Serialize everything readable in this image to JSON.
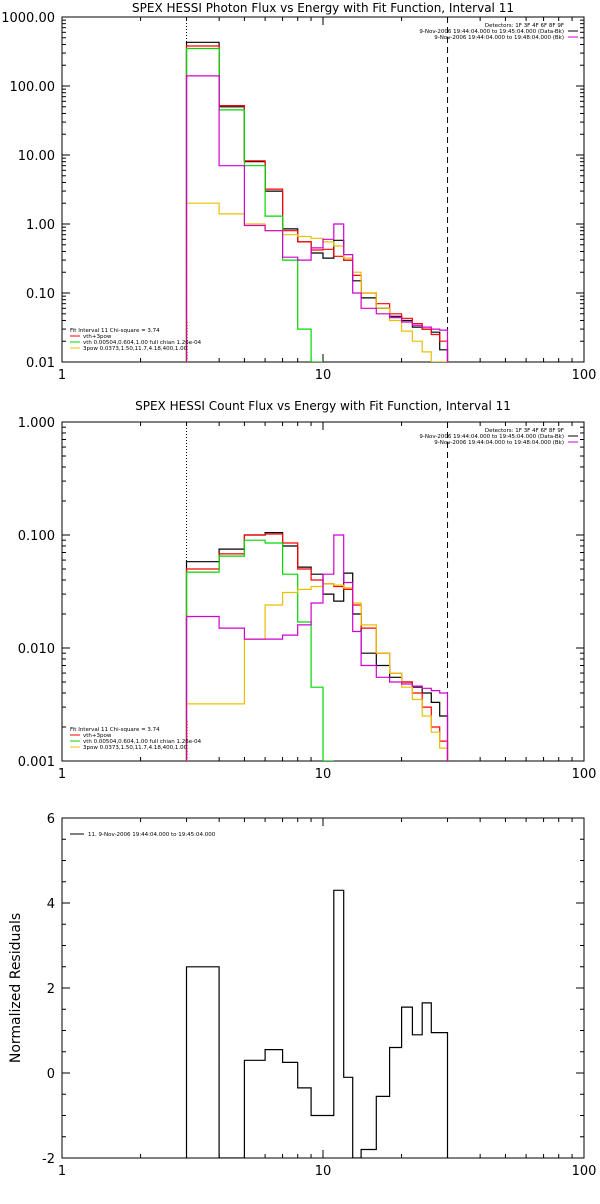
{
  "colors": {
    "black": "#000000",
    "red": "#ff0000",
    "green": "#00d800",
    "magenta": "#d000d0",
    "yellow": "#e8c000",
    "orange_marker": "#ff9000",
    "background": "#ffffff"
  },
  "chart_data": [
    {
      "type": "line",
      "id": "photon",
      "title": "SPEX HESSI Photon Flux vs Energy with Fit Function, Interval 11",
      "xlabel": "",
      "ylabel": "",
      "xscale": "log",
      "yscale": "log",
      "xlim": [
        1,
        100
      ],
      "ylim": [
        0.01,
        1000
      ],
      "x_tick_labels": [
        "1",
        "10",
        "100"
      ],
      "y_tick_labels": [
        "0.01",
        "0.10",
        "1.00",
        "10.00",
        "100.00",
        "1000.00"
      ],
      "grid": false,
      "legend_top": [
        "Detectors: 1F 3F 4F 6F 8F 9F",
        "9-Nov-2006 19:44:04.000 to 19:45:04.000 (Data-Bk)",
        "9-Nov-2006 19:44:04.000 to 19:48:04.000 (Bk)"
      ],
      "legend_bottom": [
        "Fit Interval 11    Chi-square = 3.74",
        "vth+3pow",
        "vth 0.00504,0.604,1.00  full chian 1.26e-04",
        "3pow 0.0373,1.50,11.7,4.18,400,1.00"
      ],
      "vlines": [
        3,
        30
      ],
      "edges": [
        3,
        4,
        5,
        6,
        7,
        8,
        9,
        10,
        11,
        12,
        13,
        14,
        16,
        18,
        20,
        22,
        24,
        26,
        28,
        30
      ],
      "series": [
        {
          "name": "Data-Bk",
          "color_key": "black",
          "values": [
            430,
            50,
            8,
            3,
            0.85,
            0.55,
            0.38,
            0.32,
            0.58,
            0.3,
            0.15,
            0.085,
            0.06,
            0.046,
            0.04,
            0.032,
            0.03,
            0.027,
            0.015
          ]
        },
        {
          "name": "vth+3pow",
          "color_key": "red",
          "values": [
            380,
            52,
            8.2,
            3.2,
            0.8,
            0.55,
            0.42,
            0.43,
            0.34,
            0.3,
            0.18,
            0.1,
            0.07,
            0.05,
            0.043,
            0.036,
            0.03,
            0.025,
            0.02
          ]
        },
        {
          "name": "vth",
          "color_key": "green",
          "values": [
            350,
            45,
            7,
            1.3,
            0.3,
            0.03,
            0.001
          ]
        },
        {
          "name": "3pow",
          "color_key": "yellow",
          "values": [
            2,
            1.4,
            1.0,
            0.8,
            0.7,
            0.66,
            0.62,
            0.55,
            0.48,
            0.32,
            0.2,
            0.1,
            0.06,
            0.04,
            0.028,
            0.02,
            0.014,
            0.01,
            0.008
          ]
        },
        {
          "name": "Bk",
          "color_key": "magenta",
          "values": [
            140,
            7,
            0.95,
            0.8,
            0.33,
            0.3,
            0.45,
            0.6,
            1.0,
            0.36,
            0.1,
            0.06,
            0.05,
            0.044,
            0.038,
            0.034,
            0.032,
            0.03,
            0.029
          ]
        }
      ]
    },
    {
      "type": "line",
      "id": "count",
      "title": "SPEX HESSI Count Flux vs Energy with Fit Function, Interval 11",
      "xlabel": "",
      "ylabel": "",
      "xscale": "log",
      "yscale": "log",
      "xlim": [
        1,
        100
      ],
      "ylim": [
        0.001,
        1
      ],
      "x_tick_labels": [
        "1",
        "10",
        "100"
      ],
      "y_tick_labels": [
        "0.001",
        "0.010",
        "0.100",
        "1.000"
      ],
      "grid": false,
      "legend_top": [
        "Detectors: 1F 3F 4F 6F 8F 9F",
        "9-Nov-2006 19:44:04.000 to 19:45:04.000 (Data-Bk)",
        "9-Nov-2006 19:44:04.000 to 19:48:04.000 (Bk)"
      ],
      "legend_bottom": [
        "Fit Interval 11    Chi-square = 3.74",
        "vth+3pow",
        "vth 0.00504,0.604,1.00  full chian 1.26e-04",
        "3pow 0.0373,1.50,11.7,4.18,400,1.00"
      ],
      "vlines": [
        3,
        30
      ],
      "edges": [
        3,
        4,
        5,
        6,
        7,
        8,
        9,
        10,
        11,
        12,
        13,
        14,
        16,
        18,
        20,
        22,
        24,
        26,
        28,
        30
      ],
      "series": [
        {
          "name": "Data-Bk",
          "color_key": "black",
          "values": [
            0.058,
            0.075,
            0.1,
            0.105,
            0.08,
            0.052,
            0.045,
            0.03,
            0.026,
            0.046,
            0.02,
            0.009,
            0.007,
            0.0055,
            0.005,
            0.0045,
            0.004,
            0.0033,
            0.0025
          ]
        },
        {
          "name": "vth+3pow",
          "color_key": "red",
          "values": [
            0.05,
            0.068,
            0.1,
            0.102,
            0.085,
            0.05,
            0.04,
            0.037,
            0.035,
            0.033,
            0.024,
            0.015,
            0.009,
            0.006,
            0.005,
            0.004,
            0.003,
            0.002,
            0.0015
          ]
        },
        {
          "name": "vth",
          "color_key": "green",
          "values": [
            0.047,
            0.065,
            0.09,
            0.085,
            0.045,
            0.017,
            0.0045,
            0.001
          ]
        },
        {
          "name": "3pow",
          "color_key": "yellow",
          "values": [
            0.0032,
            0.0032,
            0.012,
            0.024,
            0.031,
            0.033,
            0.035,
            0.037,
            0.036,
            0.034,
            0.025,
            0.016,
            0.009,
            0.006,
            0.0045,
            0.0035,
            0.0025,
            0.0018,
            0.0013
          ]
        },
        {
          "name": "Bk",
          "color_key": "magenta",
          "values": [
            0.019,
            0.015,
            0.012,
            0.012,
            0.013,
            0.016,
            0.025,
            0.045,
            0.1,
            0.038,
            0.014,
            0.007,
            0.0055,
            0.005,
            0.0048,
            0.0046,
            0.0044,
            0.0042,
            0.004
          ]
        }
      ]
    },
    {
      "type": "line",
      "id": "residuals",
      "title": "",
      "xlabel": "",
      "ylabel": "Normalized Residuals",
      "xscale": "log",
      "yscale": "linear",
      "xlim": [
        1,
        100
      ],
      "ylim": [
        -2,
        6
      ],
      "x_tick_labels": [
        "1",
        "10",
        "100"
      ],
      "y_tick_labels": [
        "-2",
        "0",
        "2",
        "4",
        "6"
      ],
      "grid": false,
      "legend_top": [
        "11.  9-Nov-2006 19:44:04.000 to 19:45:04.000"
      ],
      "legend_bottom": [],
      "vlines": [],
      "edges": [
        3,
        4,
        5,
        6,
        7,
        8,
        9,
        10,
        11,
        12,
        13,
        14,
        16,
        18,
        20,
        22,
        24,
        26,
        28,
        30
      ],
      "series": [
        {
          "name": "Residuals",
          "color_key": "black",
          "values": [
            2.5,
            -2.05,
            0.3,
            0.55,
            0.25,
            -0.35,
            -1.0,
            -1.0,
            4.3,
            -0.1,
            -2.0,
            -1.8,
            -0.55,
            0.6,
            1.55,
            0.9,
            1.65,
            0.95,
            0.95
          ]
        }
      ]
    }
  ]
}
